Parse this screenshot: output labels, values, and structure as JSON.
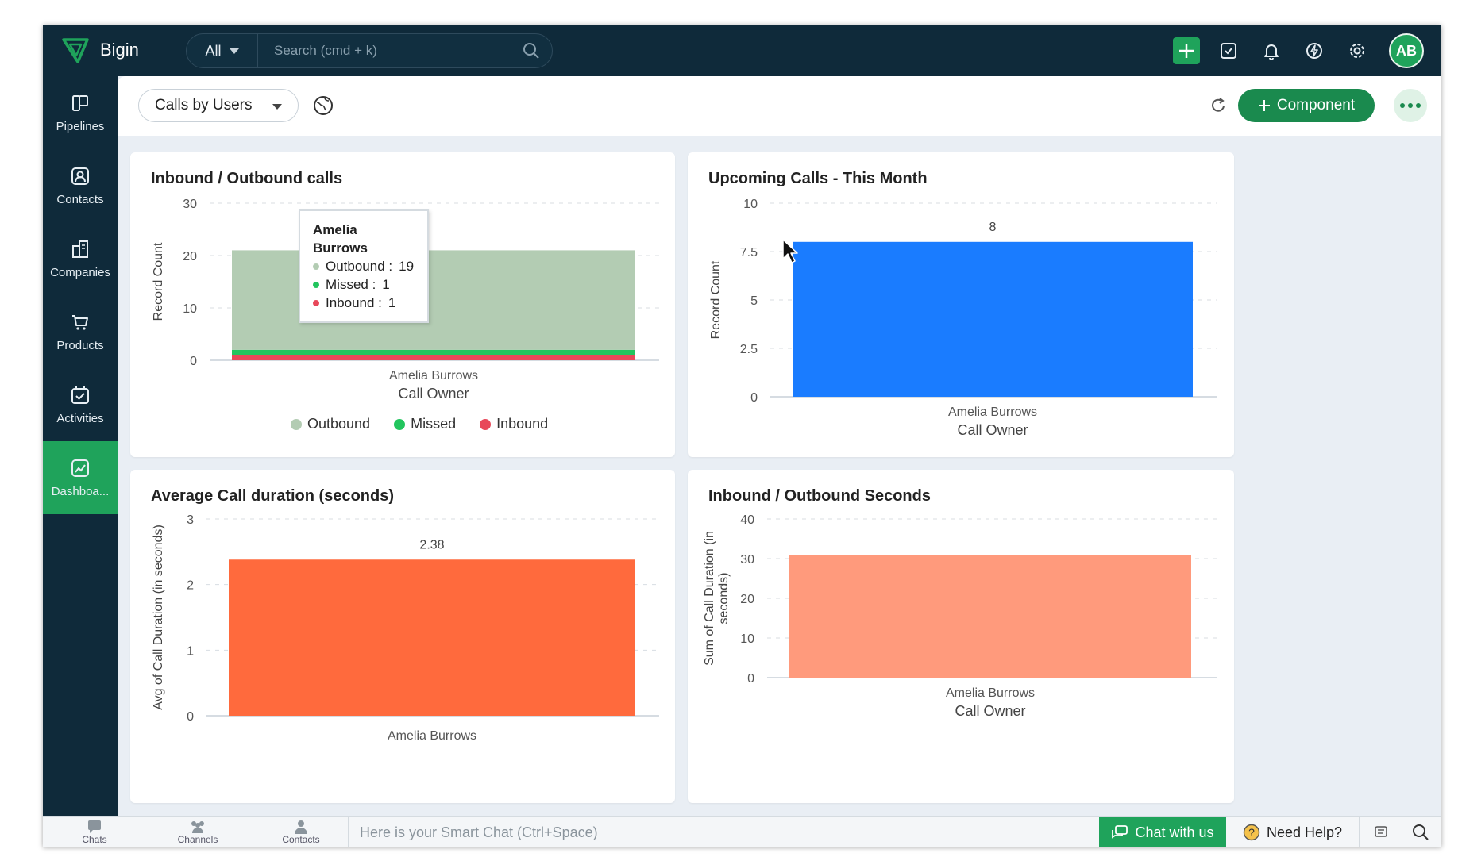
{
  "app": {
    "brand": "Bigin",
    "search": {
      "scope": "All",
      "placeholder": "Search (cmd + k)"
    },
    "user_initials": "AB",
    "accent": "#1fa35b",
    "topbar_bg": "#0f2a3a",
    "icons": [
      "plus-icon",
      "tasks-check-icon",
      "bell-icon",
      "lightning-icon",
      "gear-icon"
    ]
  },
  "sidebar": {
    "items": [
      {
        "label": "Pipelines",
        "icon": "pipelines-icon",
        "active": false
      },
      {
        "label": "Contacts",
        "icon": "contact-icon",
        "active": false
      },
      {
        "label": "Companies",
        "icon": "building-icon",
        "active": false
      },
      {
        "label": "Products",
        "icon": "cart-icon",
        "active": false
      },
      {
        "label": "Activities",
        "icon": "calendar-check-icon",
        "active": false
      },
      {
        "label": "Dashboa...",
        "icon": "dashboard-icon",
        "active": true
      }
    ]
  },
  "toolbar": {
    "view": "Calls by Users",
    "component_label": "Component"
  },
  "cards": {
    "inbound_outbound": {
      "title": "Inbound / Outbound calls",
      "tooltip": {
        "title": "Amelia Burrows",
        "rows": [
          {
            "label": "Outbound : ",
            "value": "19",
            "color": "#b3ccb3"
          },
          {
            "label": "Missed : ",
            "value": "1",
            "color": "#22c55e"
          },
          {
            "label": "Inbound : ",
            "value": "1",
            "color": "#e8485a"
          }
        ]
      },
      "legend": [
        {
          "label": "Outbound",
          "color": "#b3ccb3"
        },
        {
          "label": "Missed",
          "color": "#22c55e"
        },
        {
          "label": "Inbound",
          "color": "#e8485a"
        }
      ]
    },
    "upcoming": {
      "title": "Upcoming Calls - This Month"
    },
    "avg_duration": {
      "title": "Average Call duration (seconds)"
    },
    "inbound_outbound_seconds": {
      "title": "Inbound / Outbound Seconds"
    }
  },
  "chart_data": [
    {
      "type": "bar",
      "stacked": true,
      "title": "Inbound / Outbound calls",
      "categories": [
        "Amelia Burrows"
      ],
      "series": [
        {
          "name": "Inbound",
          "values": [
            1
          ],
          "color": "#e8485a"
        },
        {
          "name": "Missed",
          "values": [
            1
          ],
          "color": "#22c55e"
        },
        {
          "name": "Outbound",
          "values": [
            19
          ],
          "color": "#b3ccb3"
        }
      ],
      "yticks": [
        "0",
        "10",
        "20",
        "30"
      ],
      "ylim": [
        0,
        30
      ],
      "xlabel": "Call Owner",
      "ylabel": "Record Count",
      "grid": true,
      "legend": "bottom"
    },
    {
      "type": "bar",
      "title": "Upcoming Calls - This Month",
      "categories": [
        "Amelia Burrows"
      ],
      "values": [
        8
      ],
      "data_labels": [
        "8"
      ],
      "color": "#1a7cff",
      "yticks": [
        "0",
        "2.5",
        "5",
        "7.5",
        "10"
      ],
      "ylim": [
        0,
        10
      ],
      "xlabel": "Call Owner",
      "ylabel": "Record Count",
      "grid": true
    },
    {
      "type": "bar",
      "title": "Average Call duration (seconds)",
      "categories": [
        "Amelia Burrows"
      ],
      "values": [
        2.38
      ],
      "data_labels": [
        "2.38"
      ],
      "color": "#ff6a3d",
      "yticks": [
        "0",
        "1",
        "2",
        "3"
      ],
      "ylim": [
        0,
        3
      ],
      "xlabel": "",
      "ylabel": "Avg of Call Duration (in seconds)",
      "grid": true
    },
    {
      "type": "bar",
      "title": "Inbound / Outbound Seconds",
      "categories": [
        "Amelia Burrows"
      ],
      "values": [
        31
      ],
      "color": "#ff9a7c",
      "yticks": [
        "0",
        "10",
        "20",
        "30",
        "40"
      ],
      "ylim": [
        0,
        40
      ],
      "xlabel": "Call Owner",
      "ylabel_lines": [
        "Sum of Call Duration (in",
        "seconds)"
      ],
      "grid": true
    }
  ],
  "bottombar": {
    "nav": [
      {
        "label": "Chats",
        "icon": "chat-bubble-icon"
      },
      {
        "label": "Channels",
        "icon": "group-icon"
      },
      {
        "label": "Contacts",
        "icon": "person-icon"
      }
    ],
    "smart_chat_placeholder": "Here is your Smart Chat (Ctrl+Space)",
    "chat_label": "Chat with us",
    "help_label": "Need Help?"
  }
}
